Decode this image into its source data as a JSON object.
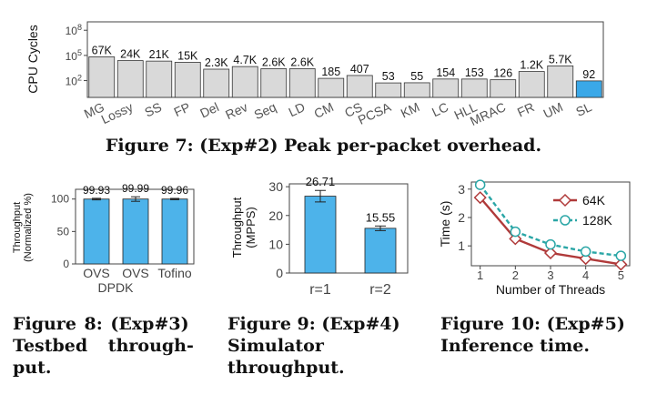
{
  "chart_data": [
    {
      "type": "bar",
      "caption": "Figure 7: (Exp#2) Peak per-packet overhead.",
      "ylabel": "CPU Cycles",
      "yscale": "log",
      "ylim": [
        1,
        1000000000
      ],
      "yticks": [
        "10^2",
        "10^5",
        "10^8"
      ],
      "categories": [
        "MG",
        "Lossy",
        "SS",
        "FP",
        "Del",
        "Rev",
        "Seq",
        "LD",
        "CM",
        "CS",
        "PCSA",
        "KM",
        "LC",
        "HLL",
        "MRAC",
        "FR",
        "UM",
        "SL"
      ],
      "values": [
        67000,
        24000,
        21000,
        15000,
        2300,
        4700,
        2600,
        2600,
        185,
        407,
        53,
        55,
        154,
        153,
        126,
        1200,
        5700,
        92
      ],
      "value_labels": [
        "67K",
        "24K",
        "21K",
        "15K",
        "2.3K",
        "4.7K",
        "2.6K",
        "2.6K",
        "185",
        "407",
        "53",
        "55",
        "154",
        "153",
        "126",
        "1.2K",
        "5.7K",
        "92"
      ],
      "highlight": "SL",
      "colors": {
        "bar": "#d9d9d9",
        "highlight": "#3aa8e8"
      }
    },
    {
      "type": "bar",
      "caption_lines": [
        "Figure 8: (Exp#3)",
        "Testbed through-",
        "put."
      ],
      "ylabel_lines": [
        "Throughput",
        "(Normalized %)"
      ],
      "ylim": [
        0,
        115
      ],
      "yticks": [
        0,
        50,
        100
      ],
      "categories": [
        "OVS",
        "OVS",
        "Tofino"
      ],
      "group_label": "DPDK",
      "values": [
        99.93,
        99.99,
        99.96
      ],
      "value_labels": [
        "99.93",
        "99.99",
        "99.96"
      ],
      "errors": [
        1.2,
        3.5,
        1.0
      ],
      "color": "#4db3ea"
    },
    {
      "type": "bar",
      "caption_lines": [
        "Figure 9: (Exp#4)",
        "Simulator",
        "throughput."
      ],
      "ylabel_lines": [
        "Throughput",
        "(MPPS)"
      ],
      "ylim": [
        0,
        31
      ],
      "yticks": [
        0,
        10,
        20,
        30
      ],
      "categories": [
        "r=1",
        "r=2"
      ],
      "values": [
        26.71,
        15.55
      ],
      "value_labels": [
        "26.71",
        "15.55"
      ],
      "errors": [
        2.0,
        0.8
      ],
      "color": "#4db3ea"
    },
    {
      "type": "line",
      "caption_lines": [
        "Figure 10: (Exp#5)",
        "Inference time."
      ],
      "xlabel": "Number of Threads",
      "ylabel": "Time (s)",
      "x": [
        1,
        2,
        3,
        4,
        5
      ],
      "xlim": [
        0.75,
        5.25
      ],
      "ylim": [
        0.3,
        3.25
      ],
      "yticks": [
        1,
        2,
        3
      ],
      "series": [
        {
          "name": "64K",
          "values": [
            2.7,
            1.25,
            0.75,
            0.55,
            0.35
          ],
          "color": "#b03a3a",
          "style": "solid",
          "marker": "diamond"
        },
        {
          "name": "128K",
          "values": [
            3.15,
            1.5,
            1.05,
            0.8,
            0.65
          ],
          "color": "#2aa6a6",
          "style": "dashed",
          "marker": "circle"
        }
      ],
      "legend": "top-right"
    }
  ]
}
